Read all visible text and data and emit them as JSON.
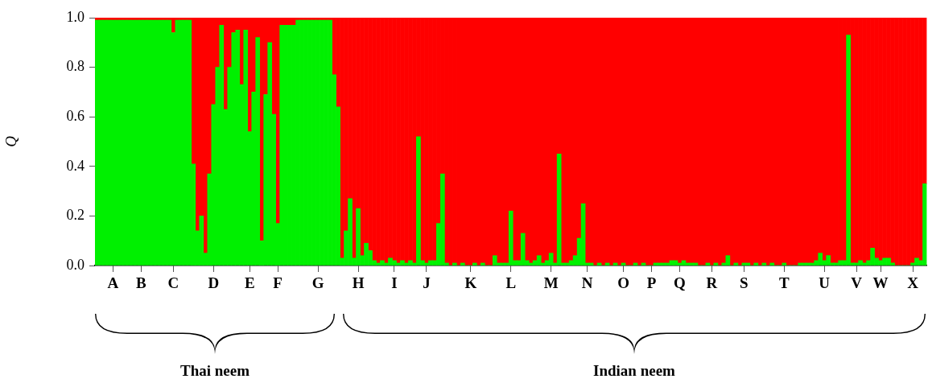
{
  "chart_data": {
    "type": "bar",
    "stacked": true,
    "ylabel": "Q",
    "ylim": [
      0,
      1
    ],
    "yticks": [
      {
        "value": 0,
        "label": "0.0"
      },
      {
        "value": 0.2,
        "label": "0.2"
      },
      {
        "value": 0.4,
        "label": "0.4"
      },
      {
        "value": 0.6,
        "label": "0.6"
      },
      {
        "value": 0.8,
        "label": "0.8"
      },
      {
        "value": 1,
        "label": "1.0"
      }
    ],
    "grid": false,
    "legend": false,
    "annotations": [
      "Thai neem",
      "Indian neem"
    ],
    "categories": [
      null,
      null,
      null,
      null,
      "A",
      null,
      null,
      null,
      null,
      null,
      null,
      "B",
      null,
      null,
      null,
      null,
      null,
      null,
      null,
      "C",
      null,
      null,
      null,
      null,
      null,
      null,
      null,
      null,
      null,
      "D",
      null,
      null,
      null,
      null,
      null,
      null,
      null,
      null,
      "E",
      null,
      null,
      null,
      null,
      null,
      null,
      "F",
      null,
      null,
      null,
      null,
      null,
      null,
      null,
      null,
      null,
      "G",
      null,
      null,
      null,
      null,
      null,
      null,
      null,
      null,
      null,
      "H",
      null,
      null,
      null,
      null,
      null,
      null,
      null,
      null,
      "I",
      null,
      null,
      null,
      null,
      null,
      null,
      null,
      "J",
      null,
      null,
      null,
      null,
      null,
      null,
      null,
      null,
      null,
      null,
      "K",
      null,
      null,
      null,
      null,
      null,
      null,
      null,
      null,
      null,
      "L",
      null,
      null,
      null,
      null,
      null,
      null,
      null,
      null,
      null,
      "M",
      null,
      null,
      null,
      null,
      null,
      null,
      null,
      null,
      "N",
      null,
      null,
      null,
      null,
      null,
      null,
      null,
      null,
      "O",
      null,
      null,
      null,
      null,
      null,
      null,
      "P",
      null,
      null,
      null,
      null,
      null,
      null,
      "Q",
      null,
      null,
      null,
      null,
      null,
      null,
      null,
      "R",
      null,
      null,
      null,
      null,
      null,
      null,
      null,
      "S",
      null,
      null,
      null,
      null,
      null,
      null,
      null,
      null,
      null,
      "T",
      null,
      null,
      null,
      null,
      null,
      null,
      null,
      null,
      null,
      "U",
      null,
      null,
      null,
      null,
      null,
      null,
      null,
      "V",
      null,
      null,
      null,
      null,
      null,
      "W",
      null,
      null,
      null,
      null,
      null,
      null,
      null,
      "X",
      null,
      null,
      null
    ],
    "series": [
      {
        "color": "#00f000",
        "values": [
          0.99,
          0.99,
          0.99,
          0.99,
          0.99,
          0.99,
          0.99,
          0.99,
          0.99,
          0.99,
          0.99,
          0.99,
          0.99,
          0.99,
          0.99,
          0.99,
          0.99,
          0.99,
          0.99,
          0.94,
          0.99,
          0.99,
          0.99,
          0.99,
          0.41,
          0.14,
          0.2,
          0.05,
          0.37,
          0.65,
          0.8,
          0.97,
          0.63,
          0.8,
          0.94,
          0.95,
          0.73,
          0.95,
          0.54,
          0.7,
          0.92,
          0.1,
          0.69,
          0.9,
          0.61,
          0.17,
          0.97,
          0.97,
          0.97,
          0.97,
          0.99,
          0.99,
          0.99,
          0.99,
          0.99,
          0.99,
          0.99,
          0.99,
          0.99,
          0.77,
          0.64,
          0.03,
          0.14,
          0.27,
          0.03,
          0.23,
          0.04,
          0.09,
          0.06,
          0.02,
          0.01,
          0.02,
          0.01,
          0.03,
          0.02,
          0.01,
          0.02,
          0.01,
          0.02,
          0.01,
          0.52,
          0.02,
          0.01,
          0.02,
          0.02,
          0.17,
          0.37,
          0.01,
          0,
          0.01,
          0,
          0.01,
          0,
          0,
          0.01,
          0,
          0.01,
          0,
          0,
          0.04,
          0.01,
          0.01,
          0.01,
          0.22,
          0.02,
          0.02,
          0.13,
          0.02,
          0.01,
          0.02,
          0.04,
          0.01,
          0.02,
          0.05,
          0.01,
          0.45,
          0.01,
          0.01,
          0.02,
          0.04,
          0.11,
          0.25,
          0.01,
          0.01,
          0,
          0.01,
          0,
          0.01,
          0,
          0.01,
          0,
          0.01,
          0,
          0,
          0.01,
          0,
          0.01,
          0,
          0,
          0.01,
          0.01,
          0.01,
          0.01,
          0.02,
          0.02,
          0.01,
          0.02,
          0.01,
          0.01,
          0.01,
          0,
          0,
          0.01,
          0,
          0.01,
          0,
          0.01,
          0.04,
          0,
          0.01,
          0,
          0.01,
          0.01,
          0,
          0.01,
          0,
          0.01,
          0,
          0.01,
          0,
          0,
          0.01,
          0,
          0,
          0,
          0.01,
          0.01,
          0.01,
          0.01,
          0.02,
          0.05,
          0.02,
          0.04,
          0.01,
          0.01,
          0.02,
          0.02,
          0.93,
          0.01,
          0.01,
          0.02,
          0.01,
          0.02,
          0.07,
          0.03,
          0.02,
          0.03,
          0.03,
          0.01,
          0,
          0,
          0,
          0,
          0.01,
          0.03,
          0.02,
          0.33
        ]
      },
      {
        "color": "#ff0000",
        "values": [
          0.01,
          0.01,
          0.01,
          0.01,
          0.01,
          0.01,
          0.01,
          0.01,
          0.01,
          0.01,
          0.01,
          0.01,
          0.01,
          0.01,
          0.01,
          0.01,
          0.01,
          0.01,
          0.01,
          0.06,
          0.01,
          0.01,
          0.01,
          0.01,
          0.59,
          0.86,
          0.8,
          0.95,
          0.63,
          0.35,
          0.2,
          0.03,
          0.37,
          0.2,
          0.06,
          0.05,
          0.27,
          0.05,
          0.46,
          0.3,
          0.08,
          0.9,
          0.31,
          0.1,
          0.39,
          0.83,
          0.03,
          0.03,
          0.03,
          0.03,
          0.01,
          0.01,
          0.01,
          0.01,
          0.01,
          0.01,
          0.01,
          0.01,
          0.01,
          0.23,
          0.36,
          0.97,
          0.86,
          0.73,
          0.97,
          0.77,
          0.96,
          0.91,
          0.94,
          0.98,
          0.99,
          0.98,
          0.99,
          0.97,
          0.98,
          0.99,
          0.98,
          0.99,
          0.98,
          0.99,
          0.48,
          0.98,
          0.99,
          0.98,
          0.98,
          0.83,
          0.63,
          0.99,
          1,
          0.99,
          1,
          0.99,
          1,
          1,
          0.99,
          1,
          0.99,
          1,
          1,
          0.96,
          0.99,
          0.99,
          0.99,
          0.78,
          0.98,
          0.98,
          0.87,
          0.98,
          0.99,
          0.98,
          0.96,
          0.99,
          0.98,
          0.95,
          0.99,
          0.55,
          0.99,
          0.99,
          0.98,
          0.96,
          0.89,
          0.75,
          0.99,
          0.99,
          1,
          0.99,
          1,
          0.99,
          1,
          0.99,
          1,
          0.99,
          1,
          1,
          0.99,
          1,
          0.99,
          1,
          1,
          0.99,
          0.99,
          0.99,
          0.99,
          0.98,
          0.98,
          0.99,
          0.98,
          0.99,
          0.99,
          0.99,
          1,
          1,
          0.99,
          1,
          0.99,
          1,
          0.99,
          0.96,
          1,
          0.99,
          1,
          0.99,
          0.99,
          1,
          0.99,
          1,
          0.99,
          1,
          0.99,
          1,
          1,
          0.99,
          1,
          1,
          1,
          0.99,
          0.99,
          0.99,
          0.99,
          0.98,
          0.95,
          0.98,
          0.96,
          0.99,
          0.99,
          0.98,
          0.98,
          0.07,
          0.99,
          0.99,
          0.98,
          0.99,
          0.98,
          0.93,
          0.97,
          0.98,
          0.97,
          0.97,
          0.99,
          1,
          1,
          1,
          1,
          0.99,
          0.97,
          0.98,
          0.67
        ]
      }
    ]
  }
}
